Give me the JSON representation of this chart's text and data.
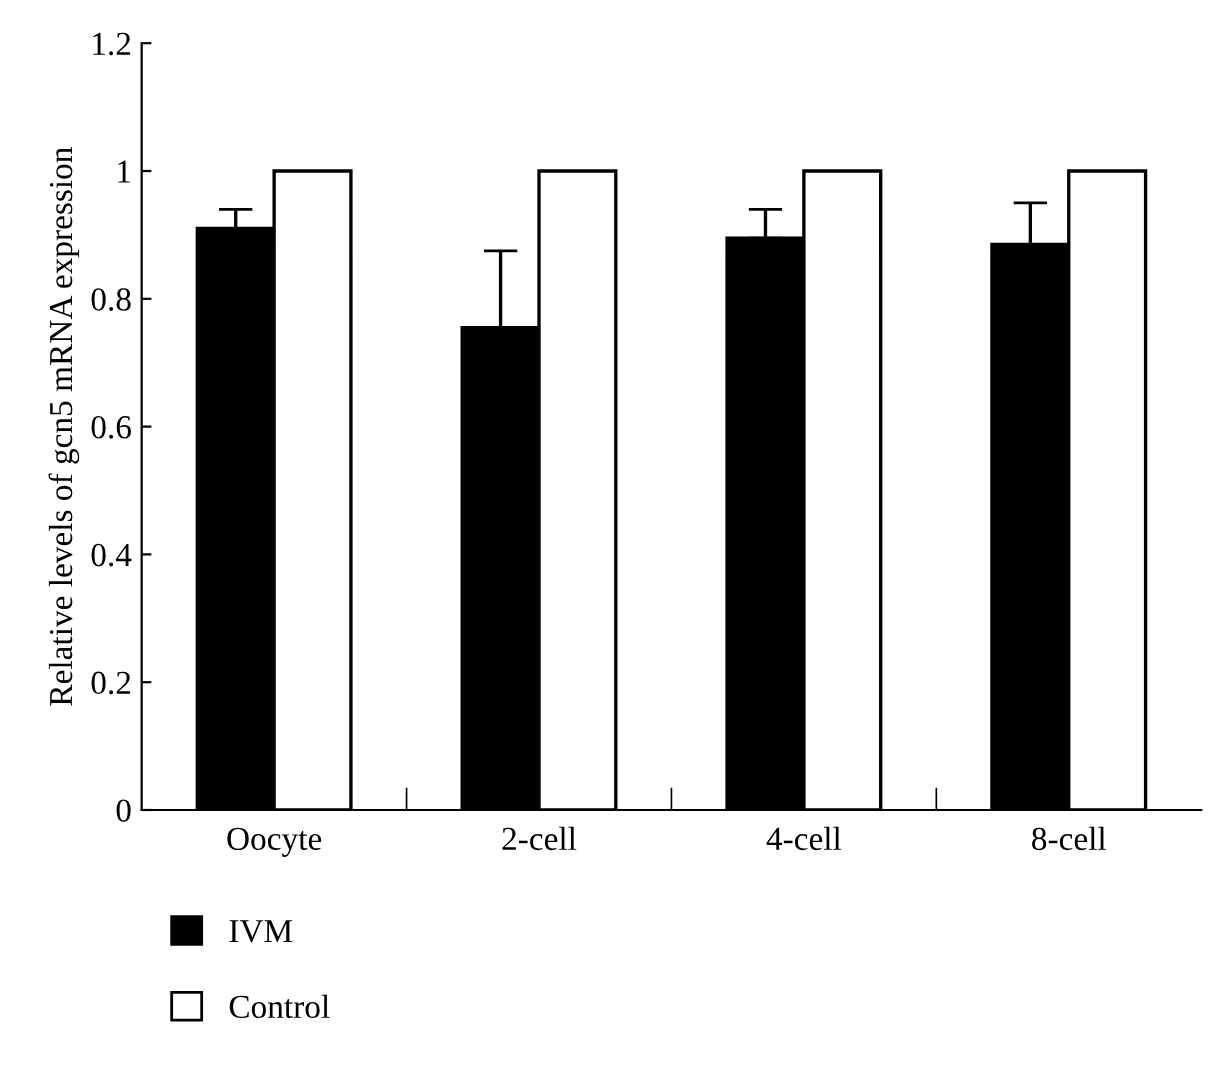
{
  "chart_data": {
    "type": "bar",
    "ylabel": "Relative levels of gcn5 mRNA expression",
    "categories": [
      "Oocyte",
      "2-cell",
      "4-cell",
      "8-cell"
    ],
    "series": [
      {
        "name": "IVM",
        "color": "#000000",
        "values": [
          0.91,
          0.755,
          0.895,
          0.885
        ],
        "errors": [
          [
            0.91,
            0.94
          ],
          [
            0.755,
            0.875
          ],
          [
            0.895,
            0.94
          ],
          [
            0.885,
            0.95
          ]
        ]
      },
      {
        "name": "Control",
        "color": "#ffffff",
        "values": [
          1,
          1,
          1,
          1
        ]
      }
    ],
    "ylim": [
      0,
      1.2
    ],
    "yticks": [
      0,
      0.2,
      0.4,
      0.6,
      0.8,
      1,
      1.2
    ],
    "grid": false,
    "legend": "bottom left"
  }
}
